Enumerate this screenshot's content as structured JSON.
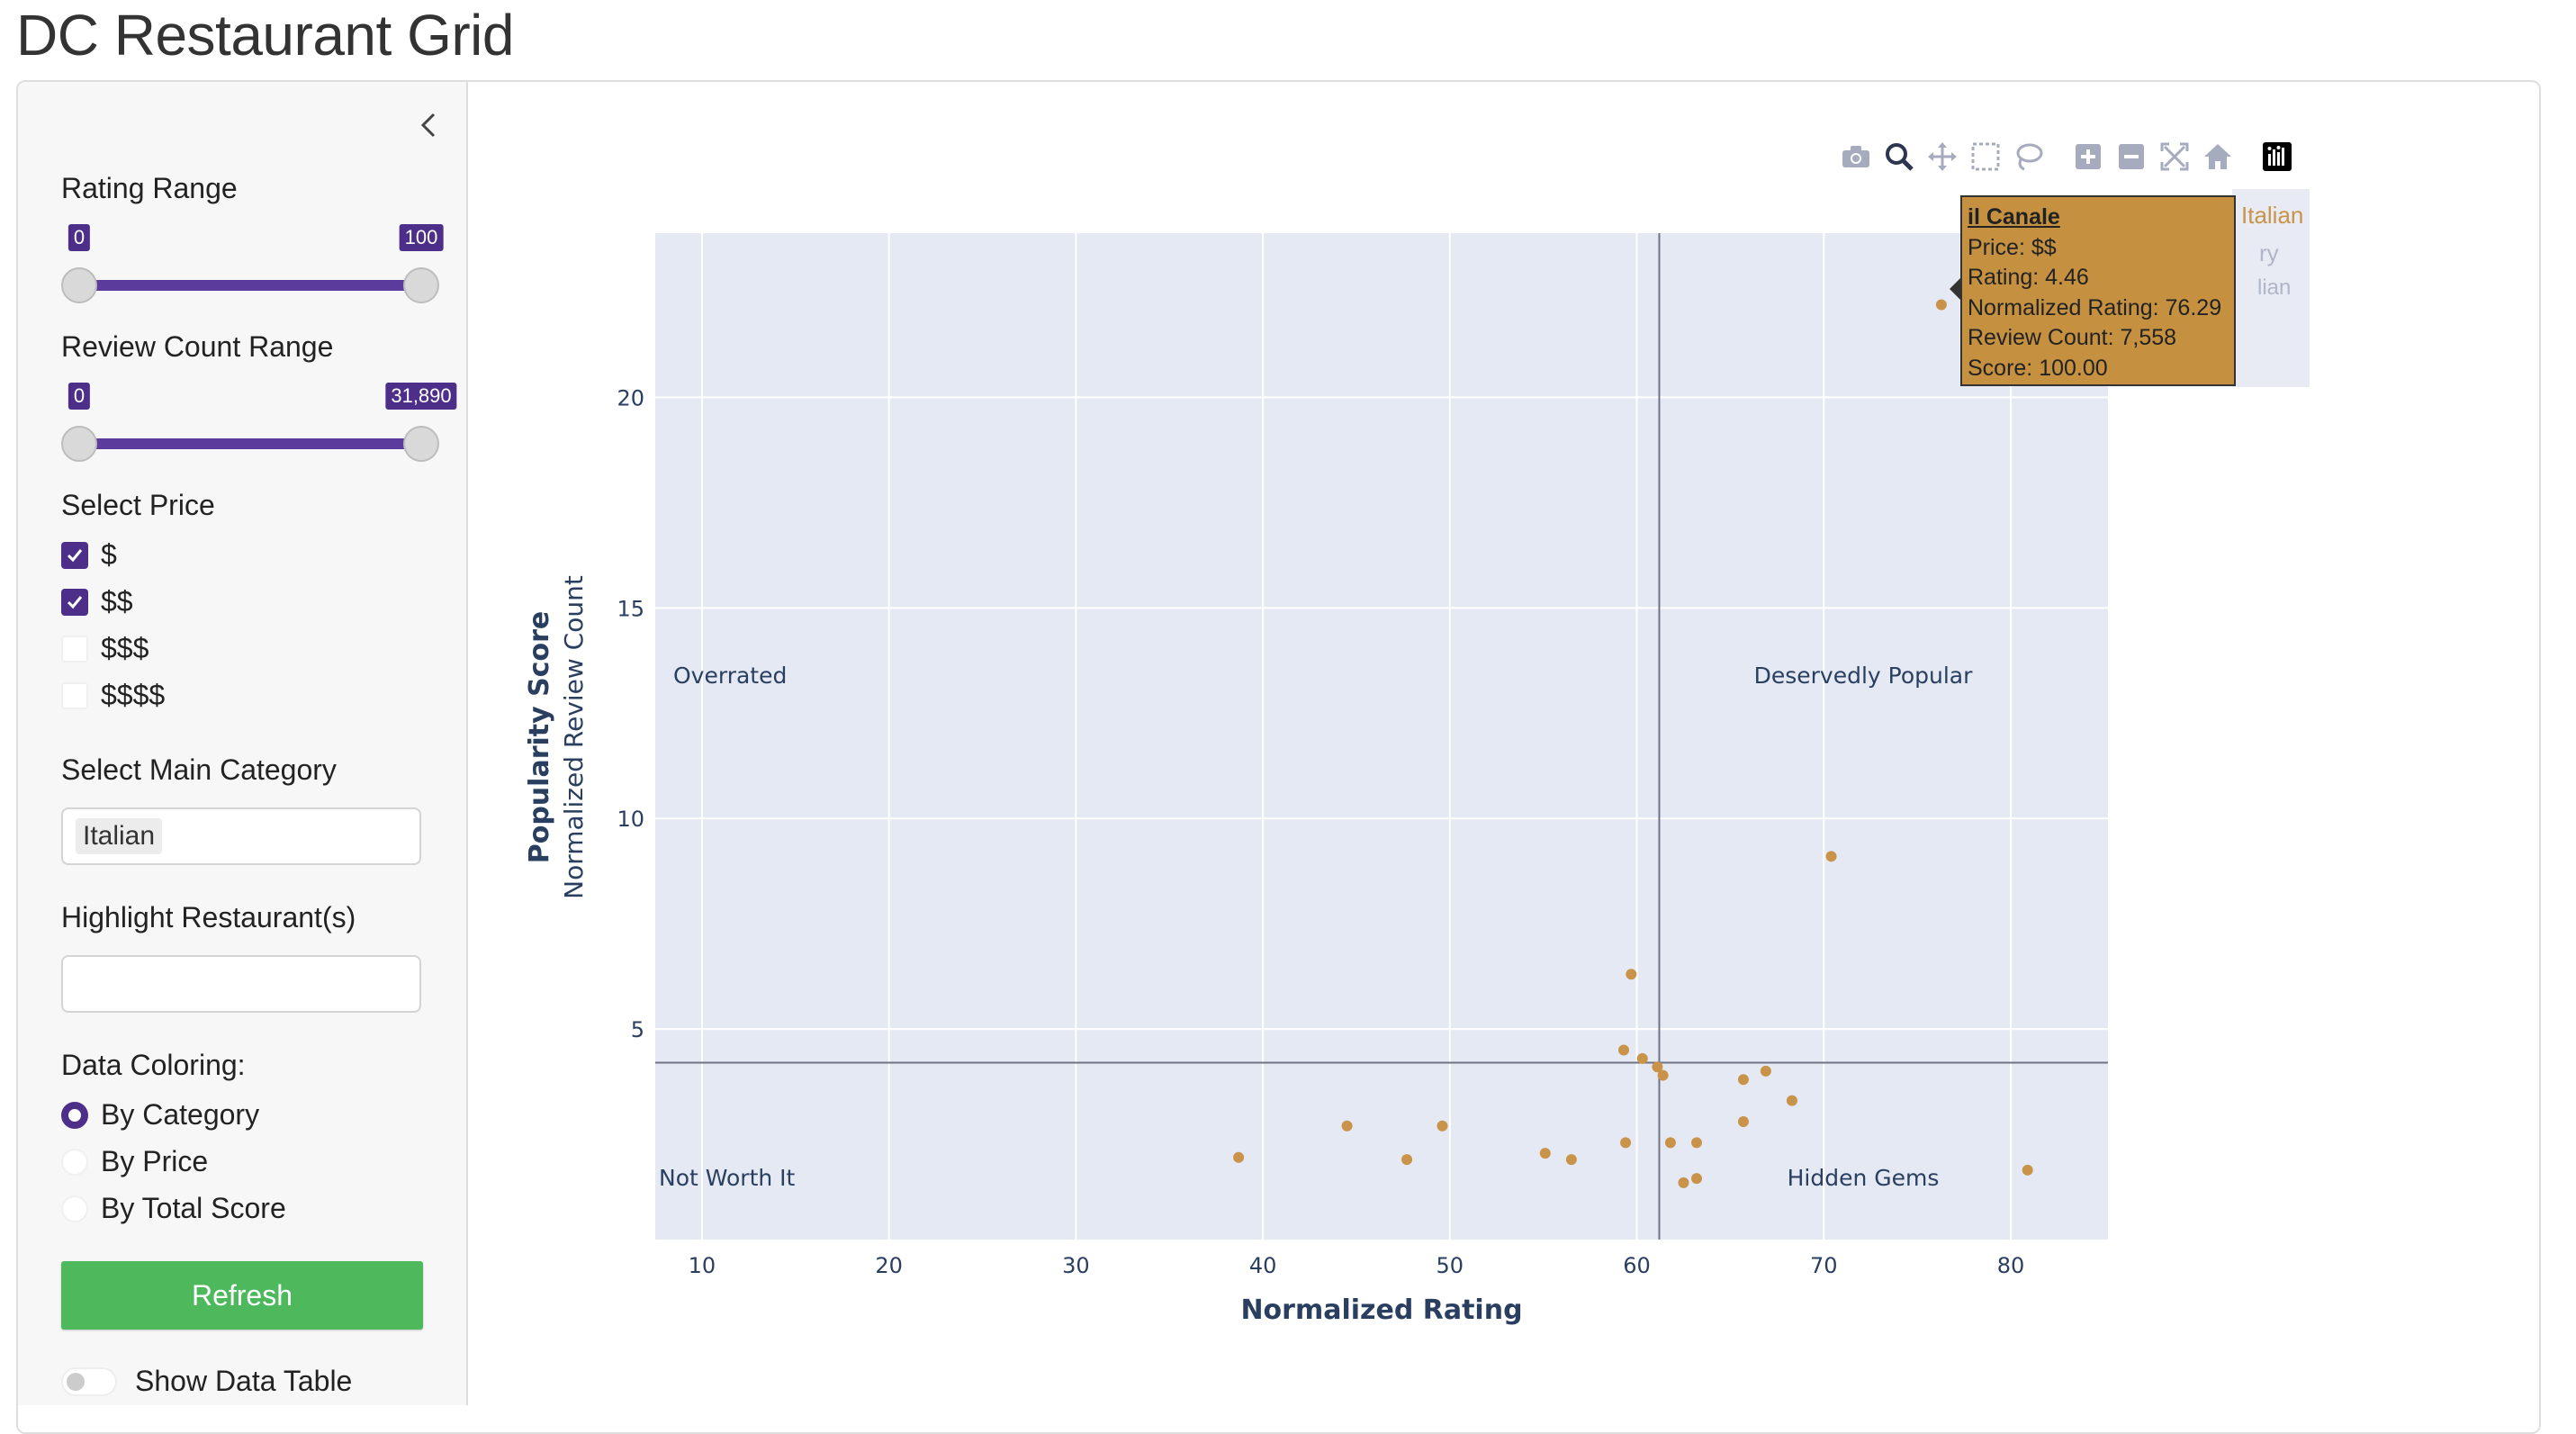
{
  "app": {
    "title": "DC Restaurant Grid"
  },
  "sidebar": {
    "rating_range": {
      "label": "Rating Range",
      "min": 0,
      "max": 100,
      "low": 0,
      "high": 100,
      "low_tag": "0",
      "high_tag": "100"
    },
    "review_count_range": {
      "label": "Review Count Range",
      "min": 0,
      "max": 31890,
      "low": 0,
      "high": 31890,
      "low_tag": "0",
      "high_tag": "31,890"
    },
    "price": {
      "label": "Select Price",
      "options": [
        {
          "label": "$",
          "checked": true
        },
        {
          "label": "$$",
          "checked": true
        },
        {
          "label": "$$$",
          "checked": false
        },
        {
          "label": "$$$$",
          "checked": false
        }
      ]
    },
    "main_category": {
      "label": "Select Main Category",
      "selected": "Italian"
    },
    "highlight": {
      "label": "Highlight Restaurant(s)",
      "value": ""
    },
    "coloring": {
      "label": "Data Coloring:",
      "options": [
        {
          "label": "By Category",
          "selected": true
        },
        {
          "label": "By Price",
          "selected": false
        },
        {
          "label": "By Total Score",
          "selected": false
        }
      ]
    },
    "refresh_label": "Refresh",
    "show_table_label": "Show Data Table",
    "show_table_on": false
  },
  "colors": {
    "accent": "#4d2f8a",
    "refresh": "#4db85c",
    "marker": "#c9934a",
    "plot_bg": "#e5e9f3",
    "tooltip_bg": "#c59140"
  },
  "chart_data": {
    "type": "scatter",
    "xlabel": "Normalized Rating",
    "ylabel": "Popularity Score",
    "ylabel_sub": "Normalized Review Count",
    "xlim": [
      7.5,
      85.2
    ],
    "ylim": [
      0,
      23.9
    ],
    "xticks": [
      10,
      20,
      30,
      40,
      50,
      60,
      70,
      80
    ],
    "yticks": [
      5,
      10,
      15,
      20
    ],
    "grid": true,
    "vline_x": 61.2,
    "hline_y": 4.2,
    "quadrant_labels": {
      "top_left": "Overrated",
      "top_right": "Deservedly Popular",
      "bottom_left": "Not Worth It",
      "bottom_right": "Hidden Gems"
    },
    "marker_color": "#c9934a",
    "points": [
      {
        "x": 76.29,
        "y": 22.2
      },
      {
        "x": 70.4,
        "y": 9.1
      },
      {
        "x": 59.7,
        "y": 6.3
      },
      {
        "x": 59.3,
        "y": 4.5
      },
      {
        "x": 60.3,
        "y": 4.3
      },
      {
        "x": 61.1,
        "y": 4.1
      },
      {
        "x": 61.4,
        "y": 3.9
      },
      {
        "x": 66.9,
        "y": 4.0
      },
      {
        "x": 65.7,
        "y": 3.8
      },
      {
        "x": 68.3,
        "y": 3.3
      },
      {
        "x": 65.7,
        "y": 2.8
      },
      {
        "x": 44.5,
        "y": 2.7
      },
      {
        "x": 49.6,
        "y": 2.7
      },
      {
        "x": 59.4,
        "y": 2.3
      },
      {
        "x": 61.8,
        "y": 2.3
      },
      {
        "x": 63.2,
        "y": 2.3
      },
      {
        "x": 38.7,
        "y": 1.95
      },
      {
        "x": 47.7,
        "y": 1.9
      },
      {
        "x": 55.1,
        "y": 2.05
      },
      {
        "x": 56.5,
        "y": 1.9
      },
      {
        "x": 63.2,
        "y": 1.45
      },
      {
        "x": 62.5,
        "y": 1.35
      },
      {
        "x": 80.9,
        "y": 1.65
      }
    ],
    "tooltip": {
      "name": "il Canale",
      "lines": [
        "Price: $$",
        "Rating: 4.46",
        "Normalized Rating: 76.29",
        "Review Count: 7,558",
        "Score: 100.00"
      ]
    },
    "legend_items": [
      "Italian",
      "ry",
      "lian"
    ]
  }
}
